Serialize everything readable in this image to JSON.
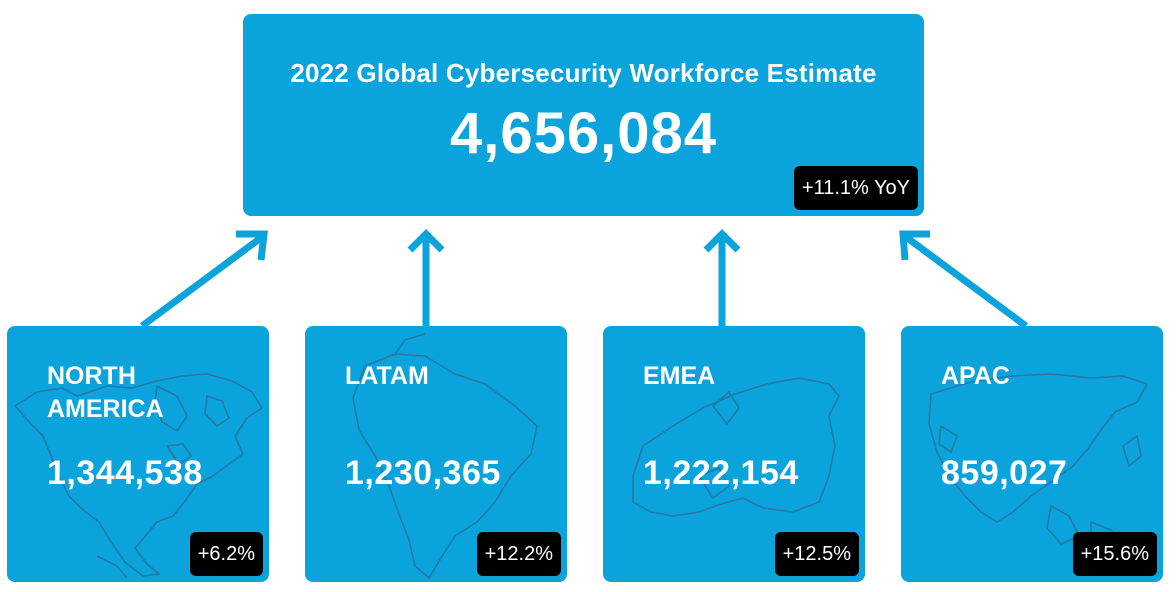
{
  "colors": {
    "box": "#0aa3dc",
    "arrow": "#0aa3dc",
    "badge": "#000000",
    "text": "#ffffff",
    "map_outline": "#2b6b93"
  },
  "header": {
    "title": "2022 Global Cybersecurity Workforce Estimate",
    "value": "4,656,084",
    "change": "+11.1% YoY"
  },
  "regions": [
    {
      "name": "NORTH AMERICA",
      "value": "1,344,538",
      "change": "+6.2%",
      "icon": "north-america-map-icon"
    },
    {
      "name": "LATAM",
      "value": "1,230,365",
      "change": "+12.2%",
      "icon": "south-america-map-icon"
    },
    {
      "name": "EMEA",
      "value": "1,222,154",
      "change": "+12.5%",
      "icon": "europe-map-icon"
    },
    {
      "name": "APAC",
      "value": "859,027",
      "change": "+15.6%",
      "icon": "asia-pacific-map-icon"
    }
  ]
}
